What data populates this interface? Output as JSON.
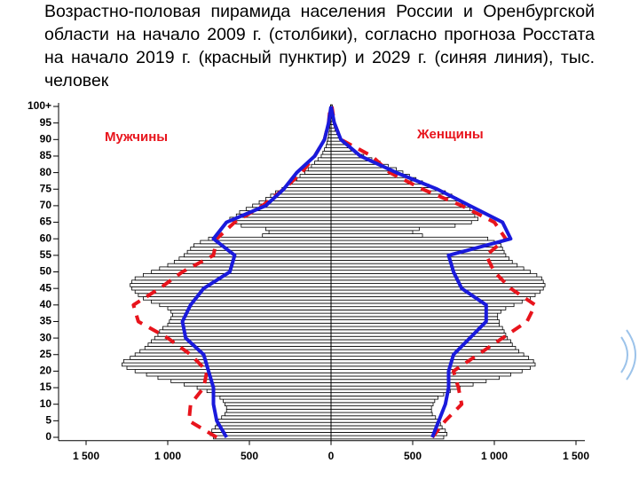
{
  "title": "Возрастно-половая пирамида населения России и Оренбургской области на начало 2009 г. (столбики), согласно прогноза Росстата на начало 2019 г. (красный пунктир) и 2029 г. (синяя линия), тыс. человек",
  "chart_data": {
    "type": "pyramid",
    "male": {
      "label": "Мужчины",
      "values": [
        720,
        740,
        730,
        710,
        700,
        690,
        670,
        650,
        640,
        640,
        650,
        660,
        680,
        720,
        760,
        820,
        900,
        980,
        1060,
        1130,
        1200,
        1250,
        1280,
        1270,
        1230,
        1200,
        1170,
        1140,
        1120,
        1100,
        1080,
        1060,
        1050,
        1030,
        1000,
        990,
        980,
        970,
        980,
        1000,
        1050,
        1100,
        1150,
        1180,
        1200,
        1220,
        1230,
        1220,
        1200,
        1150,
        1100,
        1050,
        1000,
        960,
        930,
        900,
        880,
        860,
        840,
        800,
        750,
        420,
        380,
        400,
        550,
        600,
        620,
        580,
        560,
        520,
        480,
        440,
        400,
        370,
        340,
        300,
        270,
        240,
        210,
        190,
        160,
        140,
        120,
        100,
        80,
        60,
        50,
        40,
        30,
        25,
        20,
        15,
        12,
        10,
        8,
        6,
        5,
        4,
        3,
        2,
        3
      ]
    },
    "female": {
      "label": "Женщины",
      "values": [
        690,
        710,
        700,
        680,
        670,
        660,
        640,
        620,
        615,
        615,
        625,
        635,
        655,
        690,
        730,
        790,
        870,
        950,
        1030,
        1100,
        1170,
        1220,
        1250,
        1240,
        1210,
        1180,
        1150,
        1130,
        1110,
        1100,
        1080,
        1070,
        1060,
        1050,
        1030,
        1030,
        1020,
        1020,
        1040,
        1070,
        1120,
        1170,
        1220,
        1250,
        1280,
        1300,
        1310,
        1300,
        1290,
        1260,
        1220,
        1180,
        1140,
        1110,
        1090,
        1070,
        1060,
        1050,
        1040,
        1000,
        960,
        560,
        500,
        540,
        760,
        860,
        900,
        880,
        870,
        850,
        820,
        800,
        770,
        740,
        700,
        640,
        600,
        560,
        520,
        480,
        440,
        400,
        350,
        300,
        250,
        200,
        150,
        120,
        100,
        80,
        60,
        45,
        35,
        25,
        20,
        15,
        10,
        8,
        6,
        4,
        8
      ]
    },
    "lines": [
      {
        "color": "#e8141c",
        "dashed": true,
        "ages": [
          0,
          5,
          10,
          15,
          20,
          25,
          30,
          35,
          40,
          45,
          50,
          55,
          60,
          65,
          70,
          75,
          80,
          85,
          90,
          95,
          100
        ],
        "male": [
          700,
          870,
          860,
          780,
          760,
          860,
          1000,
          1180,
          1210,
          1050,
          910,
          720,
          700,
          590,
          420,
          290,
          180,
          100,
          40,
          15,
          5
        ],
        "female": [
          620,
          700,
          800,
          780,
          750,
          900,
          1050,
          1200,
          1250,
          1100,
          1000,
          950,
          1070,
          1000,
          800,
          560,
          360,
          250,
          60,
          20,
          5
        ]
      },
      {
        "color": "#1a1adc",
        "dashed": false,
        "ages": [
          0,
          5,
          10,
          15,
          20,
          25,
          30,
          35,
          40,
          45,
          50,
          55,
          60,
          65,
          70,
          75,
          80,
          85,
          90,
          95,
          100
        ],
        "male": [
          640,
          700,
          720,
          720,
          750,
          780,
          890,
          910,
          860,
          780,
          620,
          590,
          720,
          640,
          400,
          290,
          210,
          100,
          40,
          15,
          0
        ],
        "female": [
          620,
          660,
          700,
          720,
          720,
          750,
          850,
          950,
          950,
          800,
          750,
          720,
          1100,
          1050,
          850,
          650,
          400,
          180,
          60,
          20,
          0
        ]
      }
    ],
    "xlim": [
      -1500,
      1500
    ],
    "xticks": [
      {
        "value": -1500,
        "label": "1 500"
      },
      {
        "value": -1000,
        "label": "1 000"
      },
      {
        "value": -500,
        "label": "500"
      },
      0,
      500,
      {
        "value": 1000,
        "label": "1 000"
      },
      {
        "value": 1500,
        "label": "1 500"
      }
    ],
    "ylim": [
      0,
      100
    ],
    "yticks": [
      0,
      5,
      10,
      15,
      20,
      25,
      30,
      35,
      40,
      45,
      50,
      55,
      60,
      65,
      70,
      75,
      80,
      85,
      90,
      95,
      {
        "value": 100,
        "label": "100+"
      }
    ]
  }
}
